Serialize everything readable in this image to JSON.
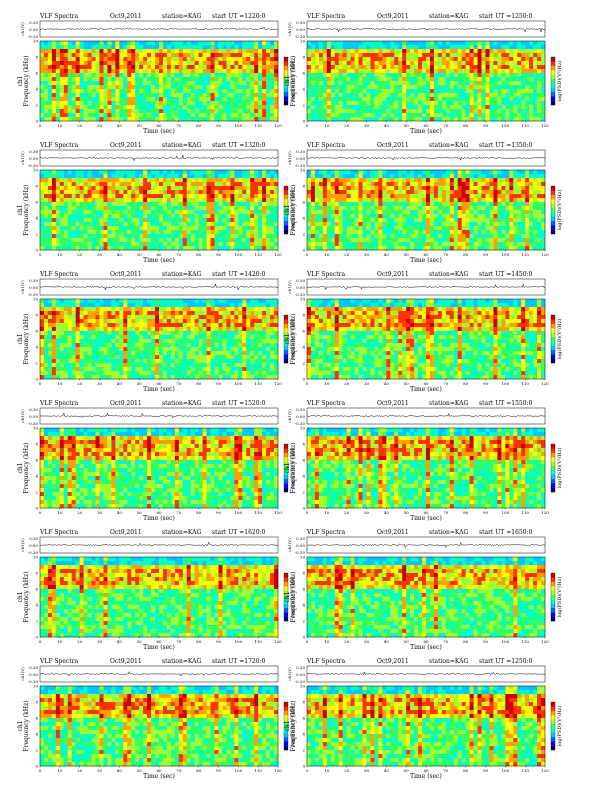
{
  "figure": {
    "colors": {
      "cmap": [
        "#000064",
        "#0000ff",
        "#0064ff",
        "#00c8ff",
        "#00ffc8",
        "#32ff64",
        "#a0ff32",
        "#ffff00",
        "#ffa000",
        "#ff3200",
        "#c80000"
      ],
      "background": "#00c8c8",
      "line": "#000000"
    },
    "panels": [
      {
        "title_left": "VLF Spectra",
        "title_date": "Oct9,2011",
        "title_station": "station=KAG",
        "title_ut": "start UT =1220:0",
        "trace_label": "ch1(V)",
        "trace_ticks": [
          "0.30",
          "0.00",
          "-0.30"
        ],
        "freq_label": "Frequency (kHz)",
        "ch_label": "ch1",
        "freq_ticks": [
          "0",
          "2",
          "4",
          "6",
          "8",
          "10"
        ],
        "time_label": "Time (sec)",
        "time_ticks": [
          "0",
          "10",
          "20",
          "30",
          "40",
          "50",
          "60",
          "70",
          "80",
          "90",
          "100",
          "110",
          "120"
        ],
        "colorbar_label": "log(PSD)(V²/Hz)"
      },
      {
        "title_left": "VLF Spectra",
        "title_date": "Oct9,2011",
        "title_station": "station=KAG",
        "title_ut": "start UT =1250:0",
        "trace_label": "ch1(V)",
        "trace_ticks": [
          "0.30",
          "0.00",
          "-0.30"
        ],
        "freq_label": "Frequency (kHz)",
        "ch_label": "ch1",
        "freq_ticks": [
          "0",
          "2",
          "4",
          "6",
          "8",
          "10"
        ],
        "time_label": "Time (sec)",
        "time_ticks": [
          "0",
          "10",
          "20",
          "30",
          "40",
          "50",
          "60",
          "70",
          "80",
          "90",
          "100",
          "110",
          "120"
        ],
        "colorbar_label": "log(PSD)(V²/Hz)"
      },
      {
        "title_left": "VLF Spectra",
        "title_date": "Oct9,2011",
        "title_station": "station=KAG",
        "title_ut": "start UT =1320:0",
        "trace_label": "ch1(V)",
        "trace_ticks": [
          "0.30",
          "0.00",
          "-0.30"
        ],
        "freq_label": "Frequency (kHz)",
        "ch_label": "ch1",
        "freq_ticks": [
          "0",
          "2",
          "4",
          "6",
          "8",
          "10"
        ],
        "time_label": "Time (sec)",
        "time_ticks": [
          "0",
          "10",
          "20",
          "30",
          "40",
          "50",
          "60",
          "70",
          "80",
          "90",
          "100",
          "110",
          "120"
        ],
        "colorbar_label": "log(PSD)(V²/Hz)"
      },
      {
        "title_left": "VLF Spectra",
        "title_date": "Oct9,2011",
        "title_station": "station=KAG",
        "title_ut": "start UT =1350:0",
        "trace_label": "ch1(V)",
        "trace_ticks": [
          "0.30",
          "0.00",
          "-0.30"
        ],
        "freq_label": "Frequency (kHz)",
        "ch_label": "ch1",
        "freq_ticks": [
          "0",
          "2",
          "4",
          "6",
          "8",
          "10"
        ],
        "time_label": "Time (sec)",
        "time_ticks": [
          "0",
          "10",
          "20",
          "30",
          "40",
          "50",
          "60",
          "70",
          "80",
          "90",
          "100",
          "110",
          "120"
        ],
        "colorbar_label": "log(PSD)(V²/Hz)"
      },
      {
        "title_left": "VLF Spectra",
        "title_date": "Oct9,2011",
        "title_station": "station=KAG",
        "title_ut": "start UT =1420:0",
        "trace_label": "ch1(V)",
        "trace_ticks": [
          "0.30",
          "0.00",
          "-0.30"
        ],
        "freq_label": "Frequency (kHz)",
        "ch_label": "ch1",
        "freq_ticks": [
          "0",
          "2",
          "4",
          "6",
          "8",
          "10"
        ],
        "time_label": "Time (sec)",
        "time_ticks": [
          "0",
          "10",
          "20",
          "30",
          "40",
          "50",
          "60",
          "70",
          "80",
          "90",
          "100",
          "110",
          "120"
        ],
        "colorbar_label": "log(PSD)(V²/Hz)"
      },
      {
        "title_left": "VLF Spectra",
        "title_date": "Oct9,2011",
        "title_station": "station=KAG",
        "title_ut": "start UT =1450:0",
        "trace_label": "ch1(V)",
        "trace_ticks": [
          "0.30",
          "0.00",
          "-0.30"
        ],
        "freq_label": "Frequency (kHz)",
        "ch_label": "ch1",
        "freq_ticks": [
          "0",
          "2",
          "4",
          "6",
          "8",
          "10"
        ],
        "time_label": "Time (sec)",
        "time_ticks": [
          "0",
          "10",
          "20",
          "30",
          "40",
          "50",
          "60",
          "70",
          "80",
          "90",
          "100",
          "110",
          "120"
        ],
        "colorbar_label": "log(PSD)(V²/Hz)"
      },
      {
        "title_left": "VLF Spectra",
        "title_date": "Oct9,2011",
        "title_station": "station=KAG",
        "title_ut": "start UT =1520:0",
        "trace_label": "ch1(V)",
        "trace_ticks": [
          "0.30",
          "0.00",
          "-0.30"
        ],
        "freq_label": "Frequency (kHz)",
        "ch_label": "ch1",
        "freq_ticks": [
          "0",
          "2",
          "4",
          "6",
          "8",
          "10"
        ],
        "time_label": "Time (sec)",
        "time_ticks": [
          "0",
          "10",
          "20",
          "30",
          "40",
          "50",
          "60",
          "70",
          "80",
          "90",
          "100",
          "110",
          "120"
        ],
        "colorbar_label": "log(PSD)(V²/Hz)"
      },
      {
        "title_left": "VLF Spectra",
        "title_date": "Oct9,2011",
        "title_station": "station=KAG",
        "title_ut": "start UT =1550:0",
        "trace_label": "ch1(V)",
        "trace_ticks": [
          "0.30",
          "0.00",
          "-0.30"
        ],
        "freq_label": "Frequency (kHz)",
        "ch_label": "ch1",
        "freq_ticks": [
          "0",
          "2",
          "4",
          "6",
          "8",
          "10"
        ],
        "time_label": "Time (sec)",
        "time_ticks": [
          "0",
          "10",
          "20",
          "30",
          "40",
          "50",
          "60",
          "70",
          "80",
          "90",
          "100",
          "110",
          "120"
        ],
        "colorbar_label": "log(PSD)(V²/Hz)"
      },
      {
        "title_left": "VLF Spectra",
        "title_date": "Oct9,2011",
        "title_station": "station=KAG",
        "title_ut": "start UT =1620:0",
        "trace_label": "ch1(V)",
        "trace_ticks": [
          "0.30",
          "0.00",
          "-0.30"
        ],
        "freq_label": "Frequency (kHz)",
        "ch_label": "ch1",
        "freq_ticks": [
          "0",
          "2",
          "4",
          "6",
          "8",
          "10"
        ],
        "time_label": "Time (sec)",
        "time_ticks": [
          "0",
          "10",
          "20",
          "30",
          "40",
          "50",
          "60",
          "70",
          "80",
          "90",
          "100",
          "110",
          "120"
        ],
        "colorbar_label": "log(PSD)(V²/Hz)"
      },
      {
        "title_left": "VLF Spectra",
        "title_date": "Oct9,2011",
        "title_station": "station=KAG",
        "title_ut": "start UT =1650:0",
        "trace_label": "ch1(V)",
        "trace_ticks": [
          "0.30",
          "0.00",
          "-0.30"
        ],
        "freq_label": "Frequency (kHz)",
        "ch_label": "ch1",
        "freq_ticks": [
          "0",
          "2",
          "4",
          "6",
          "8",
          "10"
        ],
        "time_label": "Time (sec)",
        "time_ticks": [
          "0",
          "10",
          "20",
          "30",
          "40",
          "50",
          "60",
          "70",
          "80",
          "90",
          "100",
          "110",
          "120"
        ],
        "colorbar_label": "log(PSD)(V²/Hz)"
      },
      {
        "title_left": "VLF Spectra",
        "title_date": "Oct9,2011",
        "title_station": "station=KAG",
        "title_ut": "start UT =1720:0",
        "trace_label": "ch1(V)",
        "trace_ticks": [
          "0.30",
          "0.00",
          "-0.30"
        ],
        "freq_label": "Frequency (kHz)",
        "ch_label": "ch1",
        "freq_ticks": [
          "0",
          "2",
          "4",
          "6",
          "8",
          "10"
        ],
        "time_label": "Time (sec)",
        "time_ticks": [
          "0",
          "10",
          "20",
          "30",
          "40",
          "50",
          "60",
          "70",
          "80",
          "90",
          "100",
          "110",
          "120"
        ],
        "colorbar_label": "log(PSD)(V²/Hz)"
      },
      {
        "title_left": "VLF Spectra",
        "title_date": "Oct9,2011",
        "title_station": "station=KAG",
        "title_ut": "start UT =1250:0",
        "trace_label": "ch1(V)",
        "trace_ticks": [
          "0.30",
          "0.00",
          "-0.30"
        ],
        "freq_label": "Frequency (kHz)",
        "ch_label": "ch1",
        "freq_ticks": [
          "0",
          "2",
          "4",
          "6",
          "8",
          "10"
        ],
        "time_label": "Time (sec)",
        "time_ticks": [
          "0",
          "10",
          "20",
          "30",
          "40",
          "50",
          "60",
          "70",
          "80",
          "90",
          "100",
          "110",
          "120"
        ],
        "colorbar_label": "log(PSD)(V²/Hz)"
      }
    ]
  },
  "chart_data": {
    "type": "heatmap",
    "panels": 12,
    "x_axis": {
      "label": "Time (sec)",
      "range": [
        0,
        120
      ]
    },
    "y_axis": {
      "label": "Frequency (kHz)",
      "range": [
        0,
        10
      ]
    },
    "trace": {
      "label": "ch1(V)",
      "range": [
        -0.3,
        0.3
      ]
    },
    "colorbar": {
      "label": "log(PSD)(V²/Hz)"
    }
  }
}
